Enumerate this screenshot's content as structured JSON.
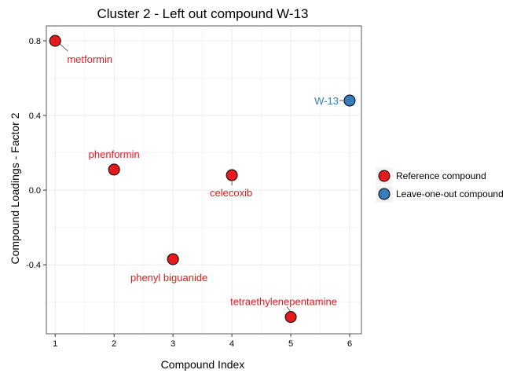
{
  "chart_data": {
    "type": "scatter",
    "title": "Cluster 2 - Left out compound W-13",
    "xlabel": "Compound Index",
    "ylabel": "Compound Loadings - Factor 2",
    "xlim": [
      0.85,
      6.2
    ],
    "ylim": [
      -0.77,
      0.88
    ],
    "x_ticks": [
      1,
      2,
      3,
      4,
      5,
      6
    ],
    "y_ticks": [
      -0.4,
      0.0,
      0.4,
      0.8
    ],
    "y_tick_labels": [
      "-0.4",
      "0.0",
      "0.4",
      "0.8"
    ],
    "grid": true,
    "legend_position": "right",
    "series": [
      {
        "name": "Reference compound",
        "color": "#e41a1c",
        "points": [
          {
            "x": 1,
            "y": 0.8,
            "label": "metformin"
          },
          {
            "x": 2,
            "y": 0.11,
            "label": "phenformin"
          },
          {
            "x": 3,
            "y": -0.37,
            "label": "phenyl biguanide"
          },
          {
            "x": 4,
            "y": 0.08,
            "label": "celecoxib"
          },
          {
            "x": 5,
            "y": -0.68,
            "label": "tetraethylenepentamine"
          }
        ]
      },
      {
        "name": "Leave-one-out compound",
        "color": "#377eb8",
        "points": [
          {
            "x": 6,
            "y": 0.48,
            "label": "W-13"
          }
        ]
      }
    ]
  }
}
